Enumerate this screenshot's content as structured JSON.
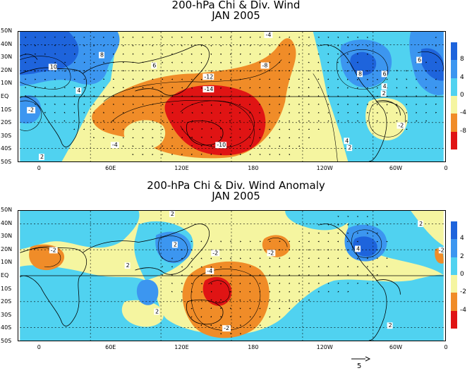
{
  "top_panel": {
    "title_line1": "200-hPa Chi & Div. Wind",
    "title_line2": "JAN 2005",
    "lat_labels": [
      "50N",
      "40N",
      "30N",
      "20N",
      "10N",
      "EQ",
      "10S",
      "20S",
      "30S",
      "40S",
      "50S"
    ],
    "lon_labels": [
      "0",
      "60E",
      "120E",
      "180",
      "120W",
      "60W",
      "0"
    ],
    "colorbar": {
      "levels": [
        "8",
        "4",
        "0",
        "-4",
        "-8"
      ],
      "colors": [
        "#1e64dc",
        "#3c96f0",
        "#50d2f0",
        "#f5f5a0",
        "#f08c28",
        "#e01414"
      ]
    },
    "contour_labels": [
      "10",
      "8",
      "6",
      "4",
      "2",
      "-4",
      "-8",
      "-10",
      "-12",
      "-14",
      "-2",
      "8",
      "6",
      "4",
      "2",
      "6",
      "-2",
      "4",
      "2",
      "-4"
    ]
  },
  "bottom_panel": {
    "title_line1": "200-hPa Chi & Div. Wind Anomaly",
    "title_line2": "JAN 2005",
    "lat_labels": [
      "50N",
      "40N",
      "30N",
      "20N",
      "10N",
      "EQ",
      "10S",
      "20S",
      "30S",
      "40S",
      "50S"
    ],
    "lon_labels": [
      "0",
      "60E",
      "120E",
      "180",
      "120W",
      "60W",
      "0"
    ],
    "colorbar": {
      "levels": [
        "4",
        "2",
        "0",
        "-2",
        "-4"
      ],
      "colors": [
        "#1e64dc",
        "#3c96f0",
        "#50d2f0",
        "#f5f5a0",
        "#f08c28",
        "#e01414"
      ]
    },
    "contour_labels": [
      "2",
      "-2",
      "2",
      "2",
      "2",
      "-2",
      "-2",
      "-4",
      "-2",
      "-2",
      "2",
      "4",
      "2"
    ]
  },
  "vector_reference": "5"
}
